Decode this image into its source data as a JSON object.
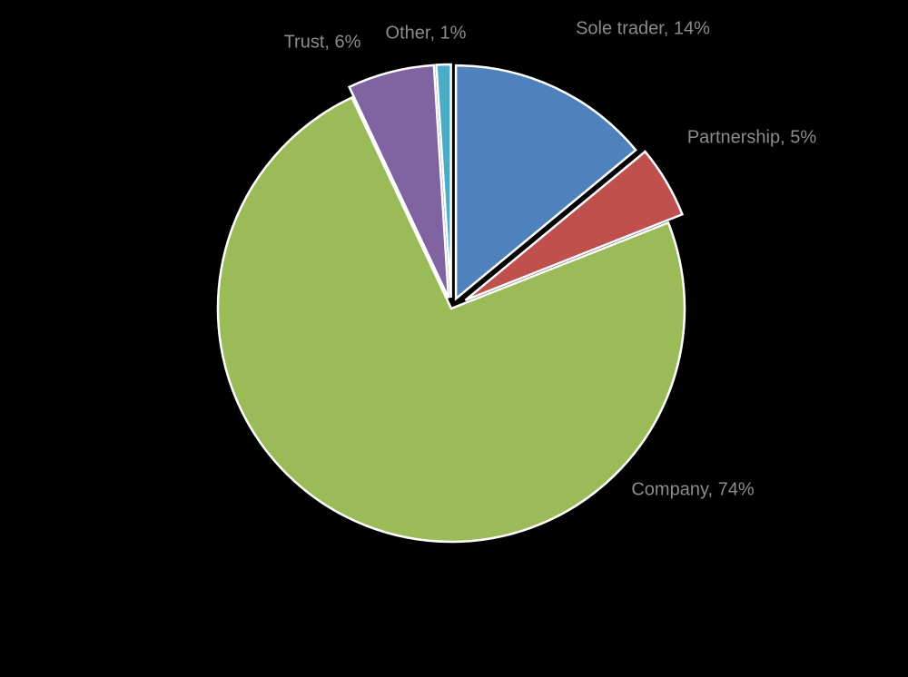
{
  "chart_data": {
    "type": "pie",
    "values": [
      14,
      5,
      74,
      6,
      1
    ],
    "value_labels": [
      "Sole trader, 14%",
      "Partnership, 5%",
      "Company, 74%",
      "Trust, 6%",
      "Other, 1%"
    ],
    "colors": [
      "#4f81bd",
      "#c0504d",
      "#9bbb59",
      "#8064a2",
      "#4bacc6"
    ]
  }
}
